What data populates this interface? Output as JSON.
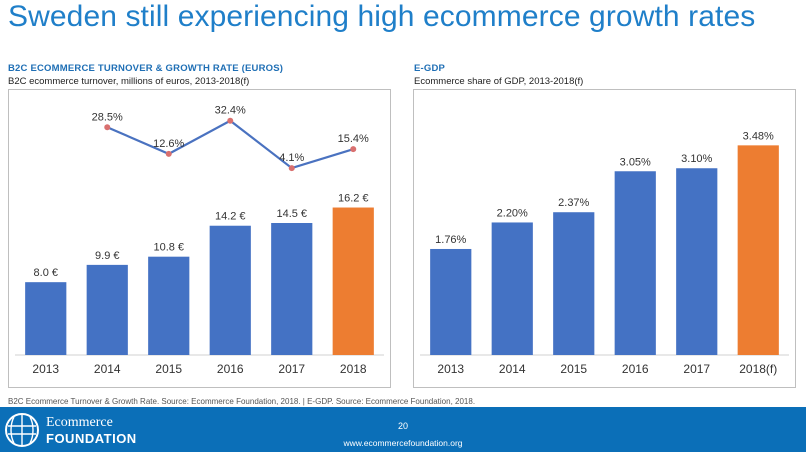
{
  "page": {
    "title": "Sweden still experiencing high ecommerce growth rates",
    "footnote": "B2C Ecommerce Turnover & Growth Rate. Source: Ecommerce Foundation, 2018. | E-GDP. Source: Ecommerce Foundation, 2018.",
    "page_number": "20",
    "url": "www.ecommercefoundation.org",
    "logo_line1": "Ecommerce",
    "logo_line2": "FOUNDATION"
  },
  "left_panel": {
    "heading": "B2C ECOMMERCE TURNOVER & GROWTH RATE (EUROS)",
    "subheading": "B2C ecommerce turnover, millions of euros, 2013-2018(f)"
  },
  "right_panel": {
    "heading": "E-GDP",
    "subheading": "Ecommerce share of GDP, 2013-2018(f)"
  },
  "colors": {
    "bar_blue": "#4472c4",
    "bar_orange": "#ed7d31",
    "line": "#4a72c0",
    "marker": "#d9706f",
    "title": "#1f7fc9",
    "footer": "#0b6fb8"
  },
  "chart_data": [
    {
      "type": "bar",
      "categories": [
        "2013",
        "2014",
        "2015",
        "2016",
        "2017",
        "2018"
      ],
      "values": [
        8.0,
        9.9,
        10.8,
        14.2,
        14.5,
        16.2
      ],
      "value_labels": [
        "8.0 €",
        "9.9 €",
        "10.8 €",
        "14.2 €",
        "14.5 €",
        "16.2 €"
      ],
      "highlight_index": 5,
      "ylim": [
        0,
        29
      ],
      "growth": {
        "type": "line",
        "categories": [
          "2014",
          "2015",
          "2016",
          "2017",
          "2018"
        ],
        "values": [
          28.5,
          12.6,
          32.4,
          4.1,
          15.4
        ],
        "labels": [
          "28.5%",
          "12.6%",
          "32.4%",
          "4.1%",
          "15.4%"
        ],
        "ylim": [
          -6,
          40
        ]
      }
    },
    {
      "type": "bar",
      "categories": [
        "2013",
        "2014",
        "2015",
        "2016",
        "2017",
        "2018(f)"
      ],
      "values": [
        1.76,
        2.2,
        2.37,
        3.05,
        3.1,
        3.48
      ],
      "value_labels": [
        "1.76%",
        "2.20%",
        "2.37%",
        "3.05%",
        "3.10%",
        "3.48%"
      ],
      "highlight_index": 5,
      "ylim": [
        0,
        4.1
      ]
    }
  ]
}
